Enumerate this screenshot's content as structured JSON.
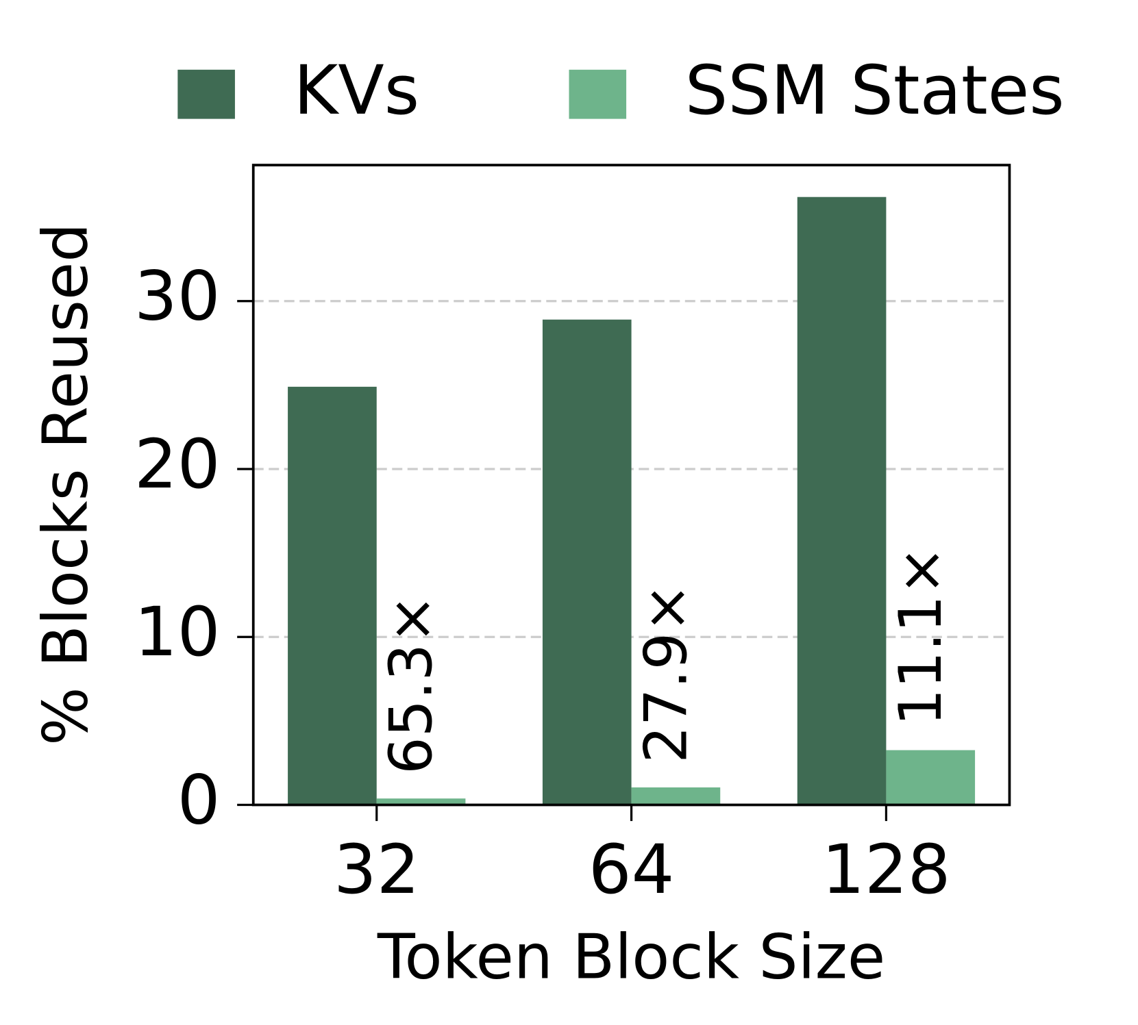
{
  "chart_data": {
    "type": "bar",
    "x_label": "Token Block Size",
    "y_label": "% Blocks Reused",
    "categories": [
      "32",
      "64",
      "128"
    ],
    "series": [
      {
        "name": "KVs",
        "color": "#3f6b53",
        "values": [
          24.9,
          28.9,
          36.2
        ]
      },
      {
        "name": "SSM States",
        "color": "#6eb48b",
        "values": [
          0.38,
          1.04,
          3.26
        ]
      }
    ],
    "annotations": [
      "65.3×",
      "27.9×",
      "11.1×"
    ],
    "ylim": [
      0,
      38.1
    ],
    "yticks": [
      0,
      10,
      20,
      30
    ],
    "grid": true,
    "legend": "top"
  }
}
